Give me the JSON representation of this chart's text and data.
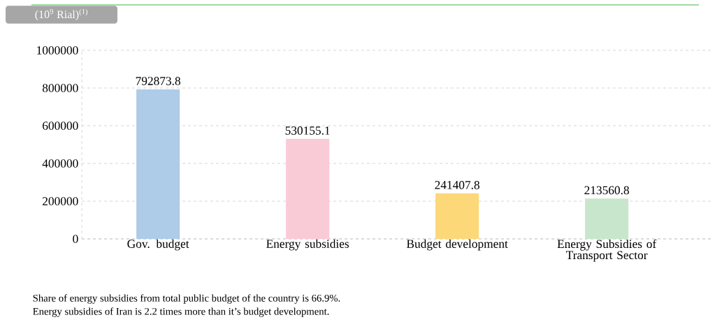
{
  "chart_data": {
    "type": "bar",
    "ylabel": "(10$^{9}$ Rial)$^{(1)}$",
    "categories": [
      "Gov. budget",
      "Energy subsidies",
      "Budget development",
      "Energy Subsidies of Transport Sector"
    ],
    "values": [
      792873.8,
      530155.1,
      241407.8,
      213560.8
    ],
    "colors": [
      "#aecbe8",
      "#f9cbd6",
      "#fdd878",
      "#c8e6cc"
    ],
    "ylim": [
      0,
      1000000
    ],
    "yticks": [
      0,
      200000,
      400000,
      600000,
      800000,
      1000000
    ],
    "grid": "y",
    "data_labels": true,
    "annotations": [
      "Share of energy subsidies from total public budget of the country is 66.9%.",
      "Energy subsidies of Iran is 2.2 times more than it’s budget development."
    ]
  }
}
